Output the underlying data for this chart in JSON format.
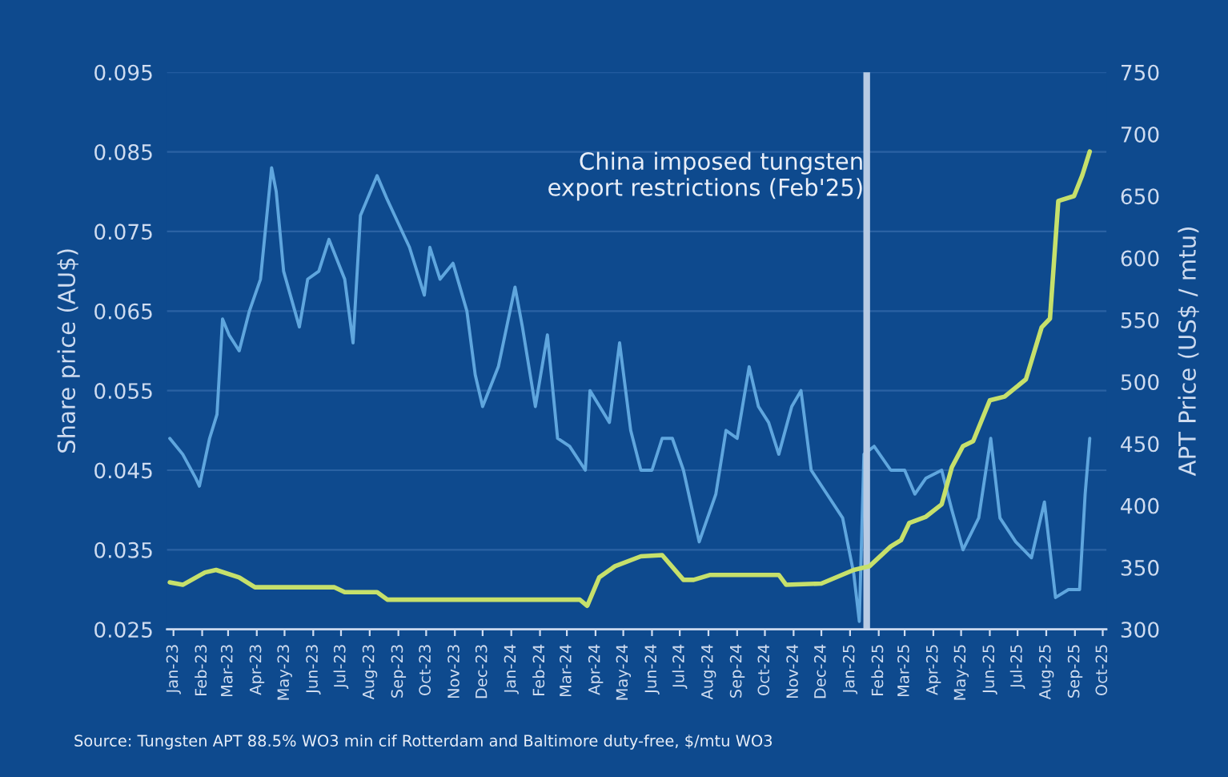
{
  "chart_data": {
    "type": "line",
    "ylabel": "Share price (AU$)",
    "y2label": "APT Price (US$ / mtu)",
    "annotations": [
      "Source: Tungsten APT 88.5% WO3 min cif Rotterdam and Baltimore duty-free, $/mtu WO3"
    ],
    "xlim": [
      "2022-12-25",
      "2025-10-05"
    ],
    "xticks": [
      {
        "value": "2023-01-01",
        "label": "Jan-23"
      },
      {
        "value": "2023-02-01",
        "label": "Feb-23"
      },
      {
        "value": "2023-03-01",
        "label": "Mar-23"
      },
      {
        "value": "2023-04-01",
        "label": "Apr-23"
      },
      {
        "value": "2023-05-01",
        "label": "May-23"
      },
      {
        "value": "2023-06-01",
        "label": "Jun-23"
      },
      {
        "value": "2023-07-01",
        "label": "Jul-23"
      },
      {
        "value": "2023-08-01",
        "label": "Aug-23"
      },
      {
        "value": "2023-09-01",
        "label": "Sep-23"
      },
      {
        "value": "2023-10-01",
        "label": "Oct-23"
      },
      {
        "value": "2023-11-01",
        "label": "Nov-23"
      },
      {
        "value": "2023-12-01",
        "label": "Dec-23"
      },
      {
        "value": "2024-01-01",
        "label": "Jan-24"
      },
      {
        "value": "2024-02-01",
        "label": "Feb-24"
      },
      {
        "value": "2024-03-01",
        "label": "Mar-24"
      },
      {
        "value": "2024-04-01",
        "label": "Apr-24"
      },
      {
        "value": "2024-05-01",
        "label": "May-24"
      },
      {
        "value": "2024-06-01",
        "label": "Jun-24"
      },
      {
        "value": "2024-07-01",
        "label": "Jul-24"
      },
      {
        "value": "2024-08-01",
        "label": "Aug-24"
      },
      {
        "value": "2024-09-01",
        "label": "Sep-24"
      },
      {
        "value": "2024-10-01",
        "label": "Oct-24"
      },
      {
        "value": "2024-11-01",
        "label": "Nov-24"
      },
      {
        "value": "2024-12-01",
        "label": "Dec-24"
      },
      {
        "value": "2025-01-01",
        "label": "Jan-25"
      },
      {
        "value": "2025-02-01",
        "label": "Feb-25"
      },
      {
        "value": "2025-03-01",
        "label": "Mar-25"
      },
      {
        "value": "2025-04-01",
        "label": "Apr-25"
      },
      {
        "value": "2025-05-01",
        "label": "May-25"
      },
      {
        "value": "2025-06-01",
        "label": "Jun-25"
      },
      {
        "value": "2025-07-01",
        "label": "Jul-25"
      },
      {
        "value": "2025-08-01",
        "label": "Aug-25"
      },
      {
        "value": "2025-09-01",
        "label": "Sep-25"
      },
      {
        "value": "2025-10-01",
        "label": "Oct-25"
      }
    ],
    "ylim": [
      0.025,
      0.095
    ],
    "yticks": [
      0.025,
      0.035,
      0.045,
      0.055,
      0.065,
      0.075,
      0.085,
      0.095
    ],
    "y2lim": [
      300,
      750
    ],
    "y2ticks": [
      300,
      350,
      400,
      450,
      500,
      550,
      600,
      650,
      700,
      750
    ],
    "grid": "y",
    "ref_lines": [
      {
        "axis": "x",
        "value": "2025-01-19",
        "label": "China imposed tungsten\nexport restrictions (Feb'25)",
        "color": "#b8cbe4"
      }
    ],
    "series": [
      {
        "color": "#5fa6de",
        "x": [
          "2022-12-28",
          "2023-01-11",
          "2023-01-25",
          "2023-01-29",
          "2023-02-09",
          "2023-02-17",
          "2023-02-23",
          "2023-03-02",
          "2023-03-13",
          "2023-03-24",
          "2023-04-05",
          "2023-04-17",
          "2023-04-22",
          "2023-04-30",
          "2023-05-17",
          "2023-05-26",
          "2023-06-07",
          "2023-06-18",
          "2023-07-05",
          "2023-07-14",
          "2023-07-22",
          "2023-08-09",
          "2023-08-20",
          "2023-09-01",
          "2023-09-13",
          "2023-09-29",
          "2023-10-05",
          "2023-10-16",
          "2023-10-30",
          "2023-11-14",
          "2023-11-23",
          "2023-12-01",
          "2023-12-18",
          "2024-01-05",
          "2024-01-13",
          "2024-01-27",
          "2024-02-09",
          "2024-02-20",
          "2024-03-04",
          "2024-03-21",
          "2024-03-26",
          "2024-04-16",
          "2024-04-27",
          "2024-05-09",
          "2024-05-20",
          "2024-06-01",
          "2024-06-12",
          "2024-06-23",
          "2024-07-05",
          "2024-07-22",
          "2024-08-09",
          "2024-08-20",
          "2024-09-01",
          "2024-09-14",
          "2024-09-24",
          "2024-10-05",
          "2024-10-16",
          "2024-10-30",
          "2024-11-09",
          "2024-11-20",
          "2024-12-07",
          "2024-12-24",
          "2025-01-05",
          "2025-01-11",
          "2025-01-16",
          "2025-01-27",
          "2025-02-14",
          "2025-03-01",
          "2025-03-12",
          "2025-03-24",
          "2025-04-10",
          "2025-04-21",
          "2025-05-03",
          "2025-05-20",
          "2025-06-02",
          "2025-06-12",
          "2025-06-29",
          "2025-07-16",
          "2025-07-30",
          "2025-08-11",
          "2025-08-25",
          "2025-09-06",
          "2025-09-12",
          "2025-09-17"
        ],
        "values": [
          0.049,
          0.047,
          0.044,
          0.043,
          0.049,
          0.052,
          0.064,
          0.062,
          0.06,
          0.065,
          0.069,
          0.083,
          0.08,
          0.07,
          0.063,
          0.069,
          0.07,
          0.074,
          0.069,
          0.061,
          0.077,
          0.082,
          0.079,
          0.076,
          0.073,
          0.067,
          0.073,
          0.069,
          0.071,
          0.065,
          0.057,
          0.053,
          0.058,
          0.068,
          0.063,
          0.053,
          0.062,
          0.049,
          0.048,
          0.045,
          0.055,
          0.051,
          0.061,
          0.05,
          0.045,
          0.045,
          0.049,
          0.049,
          0.045,
          0.036,
          0.042,
          0.05,
          0.049,
          0.058,
          0.053,
          0.051,
          0.047,
          0.053,
          0.055,
          0.045,
          0.042,
          0.039,
          0.032,
          0.026,
          0.047,
          0.048,
          0.045,
          0.045,
          0.042,
          0.044,
          0.045,
          0.04,
          0.035,
          0.039,
          0.049,
          0.039,
          0.036,
          0.034,
          0.041,
          0.029,
          0.03,
          0.03,
          0.042,
          0.049
        ]
      },
      {
        "color": "#c6e06b",
        "axis": "y2",
        "x": [
          "2022-12-28",
          "2023-01-11",
          "2023-02-04",
          "2023-02-16",
          "2023-03-13",
          "2023-03-30",
          "2023-06-24",
          "2023-07-05",
          "2023-08-09",
          "2023-08-20",
          "2024-03-15",
          "2024-03-23",
          "2024-04-05",
          "2024-04-22",
          "2024-05-20",
          "2024-06-12",
          "2024-07-05",
          "2024-07-16",
          "2024-08-03",
          "2024-10-16",
          "2024-10-24",
          "2024-12-01",
          "2025-01-05",
          "2025-01-22",
          "2025-02-14",
          "2025-02-25",
          "2025-03-06",
          "2025-03-24",
          "2025-04-10",
          "2025-04-21",
          "2025-05-03",
          "2025-05-14",
          "2025-06-01",
          "2025-06-17",
          "2025-07-10",
          "2025-07-27",
          "2025-08-05",
          "2025-08-14",
          "2025-08-31",
          "2025-09-09",
          "2025-09-17"
        ],
        "values": [
          338,
          336,
          346,
          348,
          342,
          334,
          334,
          330,
          330,
          324,
          324,
          319,
          342,
          351,
          359,
          360,
          340,
          340,
          344,
          344,
          336,
          337,
          348,
          351,
          367,
          372,
          386,
          391,
          401,
          431,
          448,
          452,
          485,
          488,
          502,
          544,
          551,
          646,
          650,
          667,
          686
        ]
      }
    ]
  }
}
